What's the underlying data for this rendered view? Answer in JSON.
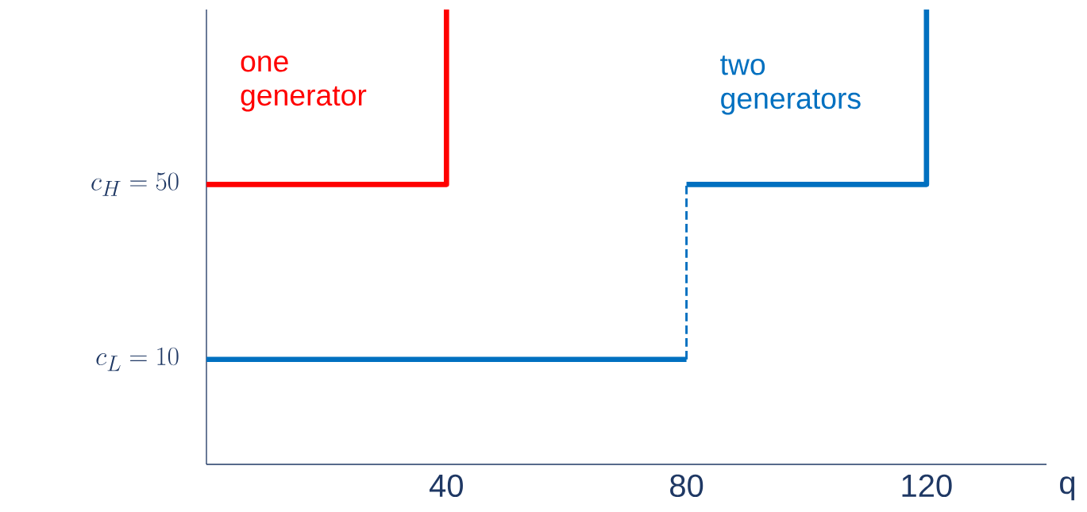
{
  "chart_data": {
    "type": "line",
    "xlabel": "q",
    "xlim": [
      0,
      140
    ],
    "ylim": [
      -14,
      90
    ],
    "xticks": [
      40,
      80,
      120
    ],
    "yticks": [
      {
        "value": 10,
        "label": "c_L = 10"
      },
      {
        "value": 50,
        "label": "c_H = 50"
      }
    ],
    "series": [
      {
        "name": "one generator",
        "color": "#ff0000",
        "x": [
          0,
          40,
          40
        ],
        "values": [
          50,
          50,
          90
        ]
      },
      {
        "color": "#0070c0",
        "x": [
          0,
          80
        ],
        "values": [
          10,
          10
        ]
      },
      {
        "color": "#0070c0",
        "x": [
          80,
          80
        ],
        "values": [
          10,
          50
        ],
        "line_style": "dashed"
      },
      {
        "name": "two generators",
        "color": "#0070c0",
        "x": [
          80,
          120,
          120
        ],
        "values": [
          50,
          50,
          90
        ]
      }
    ]
  }
}
